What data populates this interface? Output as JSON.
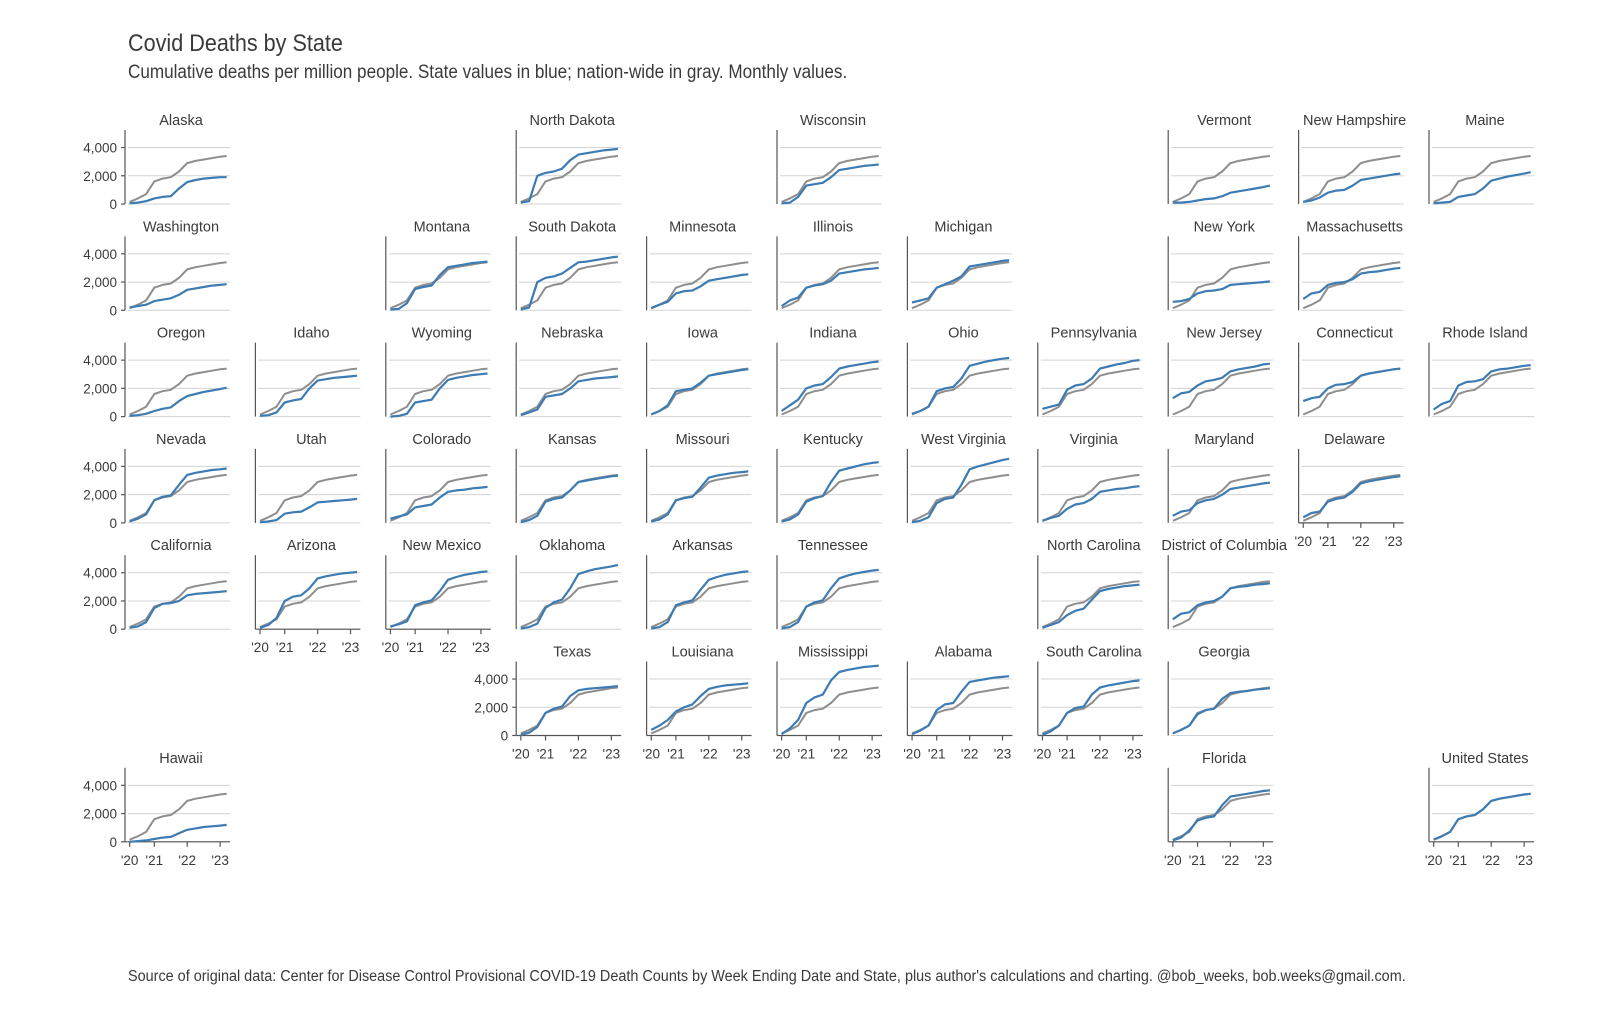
{
  "title": "Covid Deaths by State",
  "subtitle": "Cumulative deaths per million people. State values in blue; nation-wide in gray. Monthly values.",
  "source": "Source of original data: Center for Disease Control Provisional COVID-19 Death Counts by Week Ending Date and State, plus author's calculations and charting. @bob_weeks, bob.weeks@gmail.com.",
  "colors": {
    "state": "#3d7bb3",
    "nation": "#8e8e8e"
  },
  "chart_data": {
    "type": "line",
    "layout": "small-multiples tile grid",
    "x_ticks": [
      "'20",
      "'21",
      "'22",
      "'23"
    ],
    "x_range": [
      2020.2,
      2023.3
    ],
    "y_ticks": [
      0,
      2000,
      4000
    ],
    "y_tick_labels": [
      "0",
      "2,000",
      "4,000"
    ],
    "ylim": [
      0,
      5100
    ],
    "sample_x": [
      2020.25,
      2020.5,
      2020.75,
      2021.0,
      2021.25,
      2021.5,
      2021.75,
      2022.0,
      2022.25,
      2022.5,
      2022.75,
      2023.0,
      2023.2
    ],
    "national_series": {
      "name": "United States",
      "values": [
        150,
        400,
        700,
        1600,
        1800,
        1900,
        2300,
        2900,
        3050,
        3150,
        3250,
        3350,
        3400
      ]
    },
    "panels": [
      {
        "state": "Alaska",
        "col": 0,
        "row": 0,
        "values": [
          50,
          100,
          200,
          400,
          500,
          550,
          1100,
          1550,
          1700,
          1800,
          1850,
          1900,
          1900
        ]
      },
      {
        "state": "North Dakota",
        "col": 3,
        "row": 0,
        "values": [
          100,
          200,
          2000,
          2200,
          2300,
          2500,
          3100,
          3500,
          3600,
          3700,
          3800,
          3850,
          3900
        ]
      },
      {
        "state": "Wisconsin",
        "col": 5,
        "row": 0,
        "values": [
          50,
          100,
          500,
          1300,
          1400,
          1500,
          1900,
          2400,
          2500,
          2600,
          2700,
          2750,
          2800
        ]
      },
      {
        "state": "Vermont",
        "col": 8,
        "row": 0,
        "values": [
          100,
          100,
          150,
          250,
          350,
          400,
          550,
          800,
          900,
          1000,
          1100,
          1200,
          1300
        ]
      },
      {
        "state": "New Hampshire",
        "col": 9,
        "row": 0,
        "values": [
          150,
          250,
          450,
          800,
          950,
          1000,
          1300,
          1700,
          1800,
          1900,
          2000,
          2100,
          2150
        ]
      },
      {
        "state": "Maine",
        "col": 10,
        "row": 0,
        "values": [
          50,
          100,
          150,
          500,
          600,
          700,
          1100,
          1650,
          1800,
          1950,
          2050,
          2150,
          2250
        ]
      },
      {
        "state": "Washington",
        "col": 0,
        "row": 1,
        "values": [
          200,
          300,
          400,
          650,
          750,
          850,
          1100,
          1450,
          1550,
          1650,
          1750,
          1800,
          1850
        ]
      },
      {
        "state": "Montana",
        "col": 2,
        "row": 1,
        "values": [
          50,
          100,
          500,
          1500,
          1650,
          1750,
          2500,
          3050,
          3150,
          3250,
          3350,
          3400,
          3450
        ]
      },
      {
        "state": "South Dakota",
        "col": 3,
        "row": 1,
        "values": [
          50,
          200,
          2000,
          2300,
          2400,
          2600,
          3000,
          3400,
          3450,
          3550,
          3650,
          3750,
          3800
        ]
      },
      {
        "state": "Minnesota",
        "col": 4,
        "row": 1,
        "values": [
          150,
          400,
          600,
          1200,
          1350,
          1400,
          1700,
          2100,
          2200,
          2300,
          2400,
          2500,
          2550
        ]
      },
      {
        "state": "Illinois",
        "col": 5,
        "row": 1,
        "values": [
          300,
          700,
          900,
          1600,
          1750,
          1850,
          2100,
          2600,
          2700,
          2800,
          2900,
          2950,
          3000
        ]
      },
      {
        "state": "Michigan",
        "col": 6,
        "row": 1,
        "values": [
          550,
          700,
          850,
          1600,
          1850,
          2100,
          2400,
          3100,
          3200,
          3300,
          3400,
          3500,
          3550
        ]
      },
      {
        "state": "New York",
        "col": 8,
        "row": 1,
        "values": [
          600,
          650,
          800,
          1200,
          1350,
          1400,
          1500,
          1800,
          1850,
          1900,
          1950,
          2000,
          2050
        ]
      },
      {
        "state": "Massachusetts",
        "col": 9,
        "row": 1,
        "values": [
          800,
          1200,
          1300,
          1800,
          1950,
          2000,
          2200,
          2600,
          2700,
          2750,
          2850,
          2950,
          3000
        ]
      },
      {
        "state": "Oregon",
        "col": 0,
        "row": 2,
        "values": [
          50,
          100,
          200,
          400,
          550,
          650,
          1100,
          1450,
          1600,
          1750,
          1850,
          1950,
          2050
        ]
      },
      {
        "state": "Idaho",
        "col": 1,
        "row": 2,
        "values": [
          50,
          100,
          300,
          1000,
          1150,
          1250,
          2000,
          2550,
          2650,
          2750,
          2800,
          2850,
          2900
        ]
      },
      {
        "state": "Wyoming",
        "col": 2,
        "row": 2,
        "values": [
          0,
          50,
          200,
          1000,
          1100,
          1200,
          2000,
          2600,
          2750,
          2850,
          2950,
          3000,
          3050
        ]
      },
      {
        "state": "Nebraska",
        "col": 3,
        "row": 2,
        "values": [
          100,
          300,
          500,
          1400,
          1500,
          1600,
          2000,
          2500,
          2600,
          2700,
          2750,
          2800,
          2850
        ]
      },
      {
        "state": "Iowa",
        "col": 4,
        "row": 2,
        "values": [
          150,
          400,
          800,
          1800,
          1900,
          2000,
          2400,
          2900,
          3000,
          3100,
          3200,
          3300,
          3350
        ]
      },
      {
        "state": "Indiana",
        "col": 5,
        "row": 2,
        "values": [
          400,
          800,
          1200,
          2000,
          2200,
          2300,
          2800,
          3400,
          3550,
          3650,
          3750,
          3850,
          3900
        ]
      },
      {
        "state": "Ohio",
        "col": 6,
        "row": 2,
        "values": [
          200,
          400,
          700,
          1800,
          2000,
          2100,
          2700,
          3600,
          3750,
          3900,
          4000,
          4100,
          4150
        ]
      },
      {
        "state": "Pennsylvania",
        "col": 7,
        "row": 2,
        "values": [
          550,
          700,
          850,
          1900,
          2200,
          2300,
          2700,
          3400,
          3550,
          3700,
          3800,
          3950,
          4000
        ]
      },
      {
        "state": "New Jersey",
        "col": 8,
        "row": 2,
        "values": [
          1300,
          1650,
          1750,
          2200,
          2500,
          2600,
          2750,
          3200,
          3350,
          3450,
          3550,
          3700,
          3750
        ]
      },
      {
        "state": "Connecticut",
        "col": 9,
        "row": 2,
        "values": [
          1100,
          1300,
          1400,
          2000,
          2250,
          2300,
          2450,
          2900,
          3050,
          3150,
          3250,
          3350,
          3400
        ]
      },
      {
        "state": "Rhode Island",
        "col": 10,
        "row": 2,
        "values": [
          500,
          900,
          1100,
          2200,
          2450,
          2500,
          2650,
          3200,
          3350,
          3400,
          3500,
          3600,
          3650
        ]
      },
      {
        "state": "Nevada",
        "col": 0,
        "row": 3,
        "values": [
          100,
          300,
          600,
          1600,
          1850,
          1950,
          2700,
          3400,
          3550,
          3650,
          3750,
          3800,
          3850
        ]
      },
      {
        "state": "Utah",
        "col": 1,
        "row": 3,
        "values": [
          50,
          100,
          200,
          650,
          750,
          800,
          1100,
          1450,
          1500,
          1550,
          1600,
          1650,
          1700
        ]
      },
      {
        "state": "Colorado",
        "col": 2,
        "row": 3,
        "values": [
          300,
          450,
          600,
          1100,
          1200,
          1300,
          1800,
          2200,
          2300,
          2350,
          2450,
          2500,
          2550
        ]
      },
      {
        "state": "Kansas",
        "col": 3,
        "row": 3,
        "values": [
          50,
          200,
          500,
          1500,
          1700,
          1800,
          2300,
          2900,
          3000,
          3100,
          3200,
          3300,
          3350
        ]
      },
      {
        "state": "Missouri",
        "col": 4,
        "row": 3,
        "values": [
          100,
          250,
          600,
          1600,
          1750,
          1850,
          2500,
          3200,
          3350,
          3450,
          3550,
          3600,
          3650
        ]
      },
      {
        "state": "Kentucky",
        "col": 5,
        "row": 3,
        "values": [
          100,
          250,
          600,
          1500,
          1750,
          1900,
          2900,
          3700,
          3850,
          4000,
          4150,
          4250,
          4300
        ]
      },
      {
        "state": "West Virginia",
        "col": 6,
        "row": 3,
        "values": [
          50,
          150,
          400,
          1400,
          1700,
          1800,
          2700,
          3800,
          4000,
          4150,
          4300,
          4450,
          4550
        ]
      },
      {
        "state": "Virginia",
        "col": 7,
        "row": 3,
        "values": [
          150,
          350,
          500,
          1000,
          1300,
          1400,
          1700,
          2200,
          2300,
          2400,
          2450,
          2550,
          2600
        ]
      },
      {
        "state": "Maryland",
        "col": 8,
        "row": 3,
        "values": [
          500,
          800,
          900,
          1400,
          1600,
          1700,
          2000,
          2400,
          2500,
          2600,
          2700,
          2800,
          2850
        ]
      },
      {
        "state": "Delaware",
        "col": 9,
        "row": 3,
        "values": [
          400,
          700,
          800,
          1500,
          1700,
          1800,
          2200,
          2800,
          2950,
          3050,
          3150,
          3250,
          3300
        ]
      },
      {
        "state": "California",
        "col": 0,
        "row": 4,
        "values": [
          100,
          200,
          500,
          1500,
          1800,
          1850,
          2000,
          2400,
          2500,
          2550,
          2600,
          2650,
          2700
        ]
      },
      {
        "state": "Arizona",
        "col": 1,
        "row": 4,
        "values": [
          100,
          300,
          800,
          2000,
          2300,
          2400,
          2900,
          3600,
          3750,
          3850,
          3950,
          4000,
          4050
        ]
      },
      {
        "state": "New Mexico",
        "col": 2,
        "row": 4,
        "values": [
          200,
          350,
          550,
          1700,
          1900,
          2050,
          2700,
          3500,
          3700,
          3850,
          3950,
          4050,
          4100
        ]
      },
      {
        "state": "Oklahoma",
        "col": 3,
        "row": 4,
        "values": [
          50,
          150,
          400,
          1500,
          1900,
          2100,
          2900,
          3900,
          4100,
          4250,
          4350,
          4450,
          4550
        ]
      },
      {
        "state": "Arkansas",
        "col": 4,
        "row": 4,
        "values": [
          50,
          150,
          500,
          1700,
          1900,
          2050,
          2800,
          3500,
          3700,
          3850,
          3950,
          4050,
          4100
        ]
      },
      {
        "state": "Tennessee",
        "col": 5,
        "row": 4,
        "values": [
          50,
          150,
          500,
          1600,
          1900,
          2050,
          2900,
          3600,
          3800,
          3950,
          4050,
          4150,
          4200
        ]
      },
      {
        "state": "North Carolina",
        "col": 7,
        "row": 4,
        "values": [
          100,
          300,
          500,
          1000,
          1300,
          1450,
          2100,
          2700,
          2850,
          2950,
          3050,
          3100,
          3150
        ]
      },
      {
        "state": "District of Columbia",
        "col": 8,
        "row": 4,
        "values": [
          700,
          1100,
          1200,
          1700,
          1900,
          2000,
          2300,
          2900,
          3000,
          3050,
          3150,
          3200,
          3250
        ]
      },
      {
        "state": "Texas",
        "col": 3,
        "row": 5,
        "values": [
          50,
          200,
          600,
          1600,
          1900,
          2050,
          2800,
          3200,
          3300,
          3350,
          3400,
          3450,
          3500
        ]
      },
      {
        "state": "Louisiana",
        "col": 4,
        "row": 5,
        "values": [
          400,
          700,
          1100,
          1700,
          2000,
          2200,
          2800,
          3300,
          3450,
          3550,
          3600,
          3650,
          3700
        ]
      },
      {
        "state": "Mississippi",
        "col": 5,
        "row": 5,
        "values": [
          100,
          500,
          1100,
          2300,
          2700,
          2900,
          3900,
          4500,
          4650,
          4750,
          4850,
          4900,
          4950
        ]
      },
      {
        "state": "Alabama",
        "col": 6,
        "row": 5,
        "values": [
          100,
          350,
          700,
          1800,
          2200,
          2300,
          3100,
          3800,
          3900,
          4000,
          4100,
          4150,
          4200
        ]
      },
      {
        "state": "South Carolina",
        "col": 7,
        "row": 5,
        "values": [
          50,
          300,
          700,
          1600,
          1950,
          2050,
          2900,
          3400,
          3550,
          3650,
          3750,
          3850,
          3900
        ]
      },
      {
        "state": "Georgia",
        "col": 8,
        "row": 5,
        "values": [
          150,
          400,
          700,
          1500,
          1800,
          1900,
          2600,
          3000,
          3100,
          3150,
          3250,
          3300,
          3350
        ]
      },
      {
        "state": "Hawaii",
        "col": 0,
        "row": 6,
        "values": [
          0,
          50,
          100,
          200,
          300,
          350,
          600,
          850,
          950,
          1050,
          1100,
          1150,
          1200
        ]
      },
      {
        "state": "Florida",
        "col": 8,
        "row": 6,
        "values": [
          100,
          300,
          800,
          1500,
          1700,
          1800,
          2600,
          3200,
          3300,
          3400,
          3500,
          3600,
          3650
        ]
      },
      {
        "state": "United States",
        "col": 10,
        "row": 6,
        "values": [
          150,
          400,
          700,
          1600,
          1800,
          1900,
          2300,
          2900,
          3050,
          3150,
          3250,
          3350,
          3400
        ]
      }
    ],
    "panels_with_y_axis": [
      "Alaska",
      "Washington",
      "Oregon",
      "Nevada",
      "California",
      "Hawaii",
      "North Dakota",
      "Wisconsin",
      "Vermont",
      "Montana",
      "South Dakota",
      "Minnesota",
      "Illinois",
      "Michigan",
      "New York",
      "Massachusetts",
      "Idaho",
      "Wyoming",
      "Nebraska",
      "Iowa",
      "Indiana",
      "Ohio",
      "Pennsylvania",
      "New Jersey",
      "Connecticut",
      "Rhode Island",
      "Utah",
      "Colorado",
      "Kansas",
      "Missouri",
      "Kentucky",
      "West Virginia",
      "Virginia",
      "Maryland",
      "Delaware",
      "Arizona",
      "New Mexico",
      "Oklahoma",
      "Arkansas",
      "Tennessee",
      "North Carolina",
      "District of Columbia",
      "Texas",
      "Louisiana",
      "Mississippi",
      "Alabama",
      "South Carolina",
      "Georgia",
      "Florida",
      "Maine",
      "New Hampshire",
      "United States"
    ],
    "panels_with_y_tick_labels": [
      "Alaska",
      "Washington",
      "Oregon",
      "Nevada",
      "California",
      "Hawaii",
      "Texas"
    ],
    "panels_with_x_tick_labels": [
      "Hawaii",
      "Arizona",
      "New Mexico",
      "Texas",
      "Louisiana",
      "Mississippi",
      "Alabama",
      "South Carolina",
      "Delaware",
      "Florida",
      "United States"
    ]
  }
}
